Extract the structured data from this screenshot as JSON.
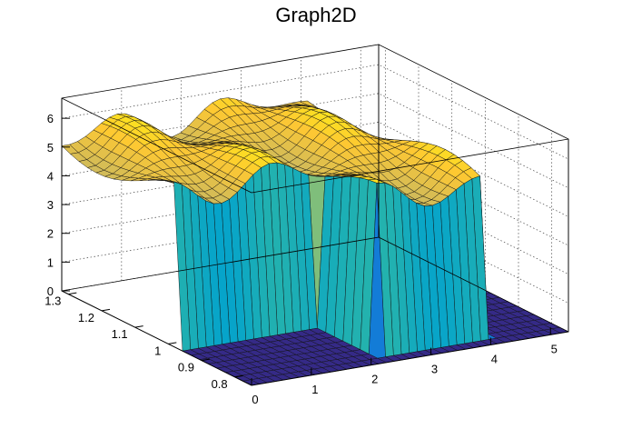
{
  "chart_data": {
    "type": "surface3d",
    "title": "Graph2D",
    "xlabel": "",
    "ylabel": "",
    "zlabel": "",
    "xlim": [
      0,
      5.3
    ],
    "ylim": [
      0.75,
      1.32
    ],
    "zlim": [
      0,
      6.7
    ],
    "x_ticks": [
      "0",
      "1",
      "2",
      "3",
      "4",
      "5"
    ],
    "y_ticks": [
      "0.8",
      "0.9",
      "1",
      "1.1",
      "1.2",
      "1.3"
    ],
    "z_ticks": [
      "0",
      "1",
      "2",
      "3",
      "4",
      "5",
      "6"
    ],
    "x_tick_values": [
      0,
      1,
      2,
      3,
      4,
      5
    ],
    "y_tick_values": [
      0.8,
      0.9,
      1.0,
      1.1,
      1.2,
      1.3
    ],
    "z_tick_values": [
      0,
      1,
      2,
      3,
      4,
      5,
      6
    ],
    "grid": true,
    "colormap": [
      "#352a87",
      "#0f5cdd",
      "#1481d6",
      "#06a4ca",
      "#2eb7a4",
      "#87bf77",
      "#d1bb59",
      "#fec832",
      "#f9fb0e"
    ],
    "surface_z_range": [
      0,
      6.3
    ],
    "plateau_x_range": [
      0,
      4.2
    ],
    "plateau_y_range": [
      0.78,
      1.32
    ],
    "plateau_height": 5.3,
    "plateau_ripple_amplitude": 0.6,
    "notch_x_range": [
      0,
      2.35
    ],
    "notch_y_range": [
      0.75,
      0.96
    ],
    "floor_x_range": [
      3.6,
      5.3
    ],
    "floor_z": 0
  }
}
